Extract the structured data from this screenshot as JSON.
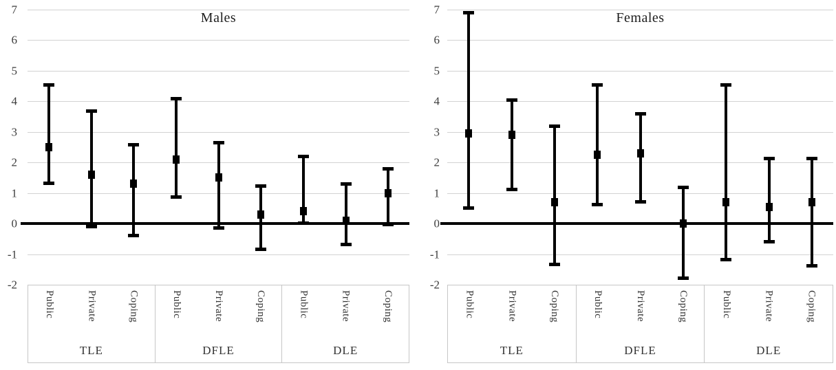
{
  "figure": {
    "background": "#ffffff"
  },
  "colors": {
    "series": "#000000",
    "gridline": "#d2d2d2",
    "axis_border": "#c6c6c6",
    "tick_text": "#3d3d3d",
    "label_text": "#333333",
    "title_text": "#1f1f1f"
  },
  "chart_data": [
    {
      "type": "scatter",
      "subtype": "point-estimates-with-ci-error-bars",
      "title": "Males",
      "xlabel": "",
      "ylabel": "",
      "ylim": [
        -2,
        7
      ],
      "yticks": [
        7,
        6,
        5,
        4,
        3,
        2,
        1,
        0,
        -1,
        -2
      ],
      "grid": true,
      "legend": "none",
      "groups": [
        "TLE",
        "DFLE",
        "DLE"
      ],
      "subcategories": [
        "Public",
        "Private",
        "Coping"
      ],
      "series": [
        {
          "group": "TLE",
          "category": "Public",
          "estimate": 2.5,
          "ci_low": 1.3,
          "ci_high": 4.55
        },
        {
          "group": "TLE",
          "category": "Private",
          "estimate": 1.6,
          "ci_low": -0.1,
          "ci_high": 3.7
        },
        {
          "group": "TLE",
          "category": "Coping",
          "estimate": 1.3,
          "ci_low": -0.4,
          "ci_high": 2.6
        },
        {
          "group": "DFLE",
          "category": "Public",
          "estimate": 2.1,
          "ci_low": 0.85,
          "ci_high": 4.1
        },
        {
          "group": "DFLE",
          "category": "Private",
          "estimate": 1.5,
          "ci_low": -0.15,
          "ci_high": 2.65
        },
        {
          "group": "DFLE",
          "category": "Coping",
          "estimate": 0.3,
          "ci_low": -0.85,
          "ci_high": 1.25
        },
        {
          "group": "DLE",
          "category": "Public",
          "estimate": 0.4,
          "ci_low": 0.0,
          "ci_high": 2.2
        },
        {
          "group": "DLE",
          "category": "Private",
          "estimate": 0.1,
          "ci_low": -0.7,
          "ci_high": 1.3
        },
        {
          "group": "DLE",
          "category": "Coping",
          "estimate": 1.0,
          "ci_low": -0.05,
          "ci_high": 1.8
        }
      ]
    },
    {
      "type": "scatter",
      "subtype": "point-estimates-with-ci-error-bars",
      "title": "Females",
      "xlabel": "",
      "ylabel": "",
      "ylim": [
        -2,
        7
      ],
      "yticks": [
        7,
        6,
        5,
        4,
        3,
        2,
        1,
        0,
        -1,
        -2
      ],
      "grid": true,
      "legend": "none",
      "groups": [
        "TLE",
        "DFLE",
        "DLE"
      ],
      "subcategories": [
        "Public",
        "Private",
        "Coping"
      ],
      "series": [
        {
          "group": "TLE",
          "category": "Public",
          "estimate": 2.95,
          "ci_low": 0.5,
          "ci_high": 6.9
        },
        {
          "group": "TLE",
          "category": "Private",
          "estimate": 2.9,
          "ci_low": 1.1,
          "ci_high": 4.05
        },
        {
          "group": "TLE",
          "category": "Coping",
          "estimate": 0.7,
          "ci_low": -1.35,
          "ci_high": 3.2
        },
        {
          "group": "DFLE",
          "category": "Public",
          "estimate": 2.25,
          "ci_low": 0.6,
          "ci_high": 4.55
        },
        {
          "group": "DFLE",
          "category": "Private",
          "estimate": 2.3,
          "ci_low": 0.7,
          "ci_high": 3.6
        },
        {
          "group": "DFLE",
          "category": "Coping",
          "estimate": 0.0,
          "ci_low": -1.8,
          "ci_high": 1.2
        },
        {
          "group": "DLE",
          "category": "Public",
          "estimate": 0.7,
          "ci_low": -1.2,
          "ci_high": 4.55
        },
        {
          "group": "DLE",
          "category": "Private",
          "estimate": 0.55,
          "ci_low": -0.6,
          "ci_high": 2.15
        },
        {
          "group": "DLE",
          "category": "Coping",
          "estimate": 0.7,
          "ci_low": -1.4,
          "ci_high": 2.15
        }
      ]
    }
  ]
}
